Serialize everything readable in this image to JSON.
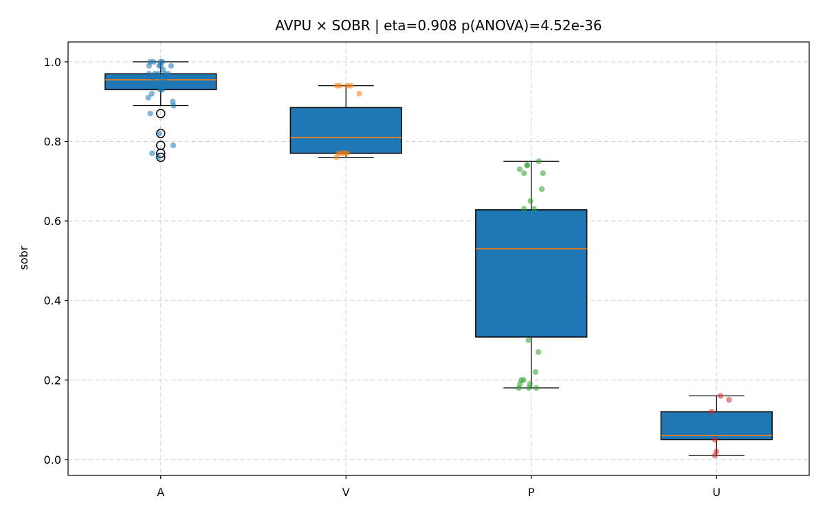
{
  "chart_data": {
    "type": "box",
    "title": "AVPU × SOBR  |  eta=0.908  p(ANOVA)=4.52e-36",
    "xlabel": "",
    "ylabel": "sobr",
    "ylim": [
      -0.04,
      1.05
    ],
    "yticks": [
      0.0,
      0.2,
      0.4,
      0.6,
      0.8,
      1.0
    ],
    "ytick_labels": [
      "0.0",
      "0.2",
      "0.4",
      "0.6",
      "0.8",
      "1.0"
    ],
    "grid": true,
    "box_color": "#1f77b4",
    "median_color": "#ff7f0e",
    "categories": [
      "A",
      "V",
      "P",
      "U"
    ],
    "groups": [
      {
        "name": "A",
        "color": "#1f77b4",
        "whisker_low": 0.89,
        "q1": 0.93,
        "median": 0.955,
        "q3": 0.97,
        "whisker_high": 1.0,
        "outliers": [
          0.87,
          0.82,
          0.79,
          0.77,
          0.76
        ],
        "points": [
          1.0,
          1.0,
          1.0,
          1.0,
          0.99,
          0.99,
          0.99,
          0.99,
          0.98,
          0.97,
          0.97,
          0.97,
          0.97,
          0.97,
          0.96,
          0.95,
          0.95,
          0.94,
          0.93,
          0.93,
          0.92,
          0.91,
          0.9,
          0.89,
          0.87,
          0.82,
          0.79,
          0.77,
          0.76
        ]
      },
      {
        "name": "V",
        "color": "#ff7f0e",
        "whisker_low": 0.76,
        "q1": 0.77,
        "median": 0.81,
        "q3": 0.885,
        "whisker_high": 0.94,
        "outliers": [],
        "points": [
          0.94,
          0.94,
          0.94,
          0.94,
          0.92,
          0.77,
          0.77,
          0.77,
          0.77,
          0.76
        ]
      },
      {
        "name": "P",
        "color": "#2ca02c",
        "whisker_low": 0.18,
        "q1": 0.308,
        "median": 0.53,
        "q3": 0.628,
        "whisker_high": 0.75,
        "outliers": [],
        "points": [
          0.75,
          0.74,
          0.74,
          0.73,
          0.72,
          0.72,
          0.68,
          0.65,
          0.63,
          0.63,
          0.3,
          0.27,
          0.22,
          0.2,
          0.2,
          0.19,
          0.19,
          0.18,
          0.18,
          0.18
        ]
      },
      {
        "name": "U",
        "color": "#d62728",
        "whisker_low": 0.01,
        "q1": 0.05,
        "median": 0.06,
        "q3": 0.12,
        "whisker_high": 0.16,
        "outliers": [],
        "points": [
          0.16,
          0.15,
          0.12,
          0.05,
          0.02,
          0.01
        ]
      }
    ]
  }
}
